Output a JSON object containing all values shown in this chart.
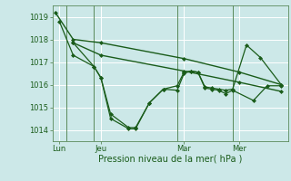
{
  "xlabel": "Pression niveau de la mer( hPa )",
  "bg_color": "#cce8e8",
  "grid_color": "#ffffff",
  "line_color": "#1a5c1a",
  "ylim": [
    1013.5,
    1019.5
  ],
  "yticks": [
    1014,
    1015,
    1016,
    1017,
    1018,
    1019
  ],
  "xtick_labels": [
    "Lun",
    "Jeu",
    "Mar",
    "Mer"
  ],
  "xtick_positions": [
    0.5,
    3.5,
    9.5,
    13.5
  ],
  "vlines_x": [
    1.0,
    3.0,
    9.0,
    13.0
  ],
  "xlim": [
    0,
    17
  ],
  "series": [
    {
      "x": [
        0.2,
        1.5,
        3.5,
        9.5,
        13.5,
        16.5
      ],
      "y": [
        1019.2,
        1018.0,
        1017.85,
        1017.15,
        1016.55,
        1016.0
      ],
      "color": "#1a5c1a",
      "lw": 1.0,
      "marker": "D",
      "ms": 2.0
    },
    {
      "x": [
        1.5,
        3.5,
        9.5,
        13.5,
        16.5
      ],
      "y": [
        1017.85,
        1017.3,
        1016.6,
        1016.1,
        1015.7
      ],
      "color": "#1a5c1a",
      "lw": 1.0,
      "marker": "D",
      "ms": 2.0
    },
    {
      "x": [
        0.5,
        1.5,
        3.0,
        3.5,
        4.2,
        5.5,
        6.0,
        7.0,
        8.0,
        9.0,
        9.5,
        10.0,
        10.5,
        11.0,
        11.5,
        12.0,
        12.5,
        13.0,
        14.0,
        15.0,
        16.5
      ],
      "y": [
        1018.8,
        1017.3,
        1016.8,
        1016.3,
        1014.7,
        1014.1,
        1014.1,
        1015.2,
        1015.8,
        1015.95,
        1016.55,
        1016.6,
        1016.55,
        1015.9,
        1015.85,
        1015.8,
        1015.75,
        1015.8,
        1017.75,
        1017.2,
        1016.0
      ],
      "color": "#1a5c1a",
      "lw": 0.9,
      "marker": "D",
      "ms": 2.0
    },
    {
      "x": [
        1.5,
        3.0,
        3.5,
        4.2,
        5.5,
        6.0,
        7.0,
        8.0,
        9.0,
        9.5,
        10.0,
        10.5,
        11.0,
        11.5,
        12.0,
        12.5,
        13.0,
        14.5,
        15.5,
        16.5
      ],
      "y": [
        1017.85,
        1016.8,
        1016.3,
        1014.5,
        1014.05,
        1014.05,
        1015.2,
        1015.8,
        1015.75,
        1016.5,
        1016.6,
        1016.55,
        1015.85,
        1015.8,
        1015.75,
        1015.6,
        1015.75,
        1015.3,
        1015.95,
        1015.95
      ],
      "color": "#1a5c1a",
      "lw": 0.9,
      "marker": "D",
      "ms": 2.0
    }
  ]
}
